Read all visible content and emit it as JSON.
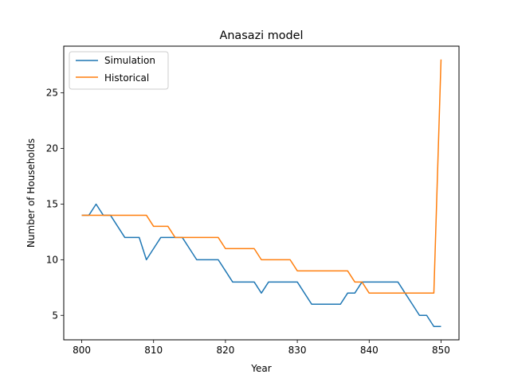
{
  "chart_data": {
    "type": "line",
    "title": "Anasazi model",
    "xlabel": "Year",
    "ylabel": "Number of Households",
    "xlim": [
      797.5,
      852.5
    ],
    "ylim": [
      2.8,
      29.2
    ],
    "xticks": [
      800,
      810,
      820,
      830,
      840,
      850
    ],
    "yticks": [
      5,
      10,
      15,
      20,
      25
    ],
    "grid": false,
    "legend_position": "top-left",
    "x": [
      800,
      801,
      802,
      803,
      804,
      805,
      806,
      807,
      808,
      809,
      810,
      811,
      812,
      813,
      814,
      815,
      816,
      817,
      818,
      819,
      820,
      821,
      822,
      823,
      824,
      825,
      826,
      827,
      828,
      829,
      830,
      831,
      832,
      833,
      834,
      835,
      836,
      837,
      838,
      839,
      840,
      841,
      842,
      843,
      844,
      845,
      846,
      847,
      848,
      849,
      850
    ],
    "series": [
      {
        "name": "Simulation",
        "color": "#1f77b4",
        "values": [
          14,
          14,
          15,
          14,
          14,
          13,
          12,
          12,
          12,
          10,
          11,
          12,
          12,
          12,
          12,
          11,
          10,
          10,
          10,
          10,
          9,
          8,
          8,
          8,
          8,
          7,
          8,
          8,
          8,
          8,
          8,
          7,
          6,
          6,
          6,
          6,
          6,
          7,
          7,
          8,
          8,
          8,
          8,
          8,
          8,
          7,
          6,
          5,
          5,
          4,
          4
        ]
      },
      {
        "name": "Historical",
        "color": "#ff7f0e",
        "values": [
          14,
          14,
          14,
          14,
          14,
          14,
          14,
          14,
          14,
          14,
          13,
          13,
          13,
          12,
          12,
          12,
          12,
          12,
          12,
          12,
          11,
          11,
          11,
          11,
          11,
          10,
          10,
          10,
          10,
          10,
          9,
          9,
          9,
          9,
          9,
          9,
          9,
          9,
          8,
          8,
          7,
          7,
          7,
          7,
          7,
          7,
          7,
          7,
          7,
          7,
          28
        ]
      }
    ]
  }
}
